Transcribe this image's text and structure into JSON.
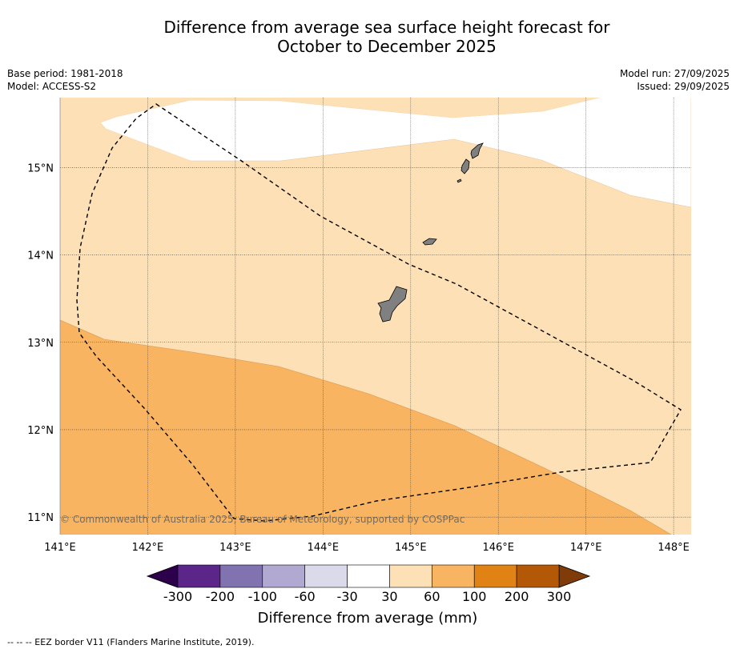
{
  "title": {
    "line1": "Difference from average sea surface height forecast for",
    "line2": "October to December 2025"
  },
  "meta": {
    "base_period": "Base period: 1981-2018",
    "model": "Model: ACCESS-S2",
    "model_run": "Model run: 27/09/2025",
    "issued": "Issued: 29/09/2025"
  },
  "map": {
    "lon_range": [
      141,
      148.2
    ],
    "lat_range": [
      10.8,
      15.8
    ],
    "lon_ticks": [
      {
        "value": 141,
        "label": "141°E"
      },
      {
        "value": 142,
        "label": "142°E"
      },
      {
        "value": 143,
        "label": "143°E"
      },
      {
        "value": 144,
        "label": "144°E"
      },
      {
        "value": 145,
        "label": "145°E"
      },
      {
        "value": 146,
        "label": "146°E"
      },
      {
        "value": 147,
        "label": "147°E"
      },
      {
        "value": 148,
        "label": "148°E"
      }
    ],
    "lat_ticks": [
      {
        "value": 15,
        "label": "15°N"
      },
      {
        "value": 14,
        "label": "14°N"
      },
      {
        "value": 13,
        "label": "13°N"
      },
      {
        "value": 12,
        "label": "12°N"
      },
      {
        "value": 11,
        "label": "11°N"
      }
    ],
    "regions": [
      {
        "name": "30 to 60 mm",
        "color": "#fde0b6"
      },
      {
        "name": "-30 to 30 mm (near average)",
        "color": "#ffffff"
      },
      {
        "name": "60 to 100 mm",
        "color": "#f9b462"
      }
    ],
    "land_color": "#808080",
    "copyright": "© Commonwealth of Australia 2025, Bureau of Meteorology, supported by COSPPac"
  },
  "colorbar": {
    "title": "Difference from average (mm)",
    "tick_labels": [
      "-300",
      "-200",
      "-100",
      "-60",
      "-30",
      "30",
      "60",
      "100",
      "200",
      "300"
    ],
    "colors": [
      "#5b2589",
      "#8073b0",
      "#b1a9d2",
      "#dadaeb",
      "#ffffff",
      "#fde0b6",
      "#f9b462",
      "#e08214",
      "#b35806"
    ],
    "under_color": "#2d004b",
    "over_color": "#7f3b08"
  },
  "footer": {
    "legend_text": "--  --  -- EEZ border V11 (Flanders Marine Institute, 2019)."
  }
}
